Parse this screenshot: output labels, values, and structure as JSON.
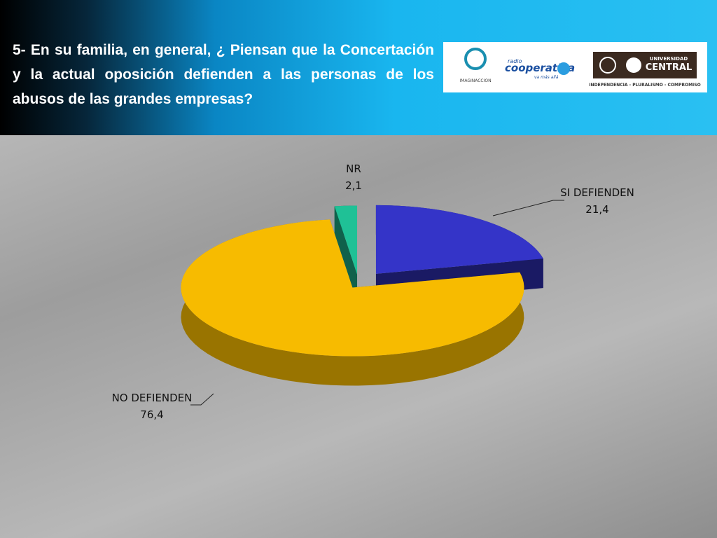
{
  "header": {
    "title": "5- En su familia, en general, ¿ Piensan que la Concertación y la actual oposición defienden a las personas de los abusos de las grandes empresas?"
  },
  "logos": {
    "imaginaccion": "IMAGINACCION",
    "cooperativa": "cooperativa",
    "cooperativa_radio": "radio",
    "cooperativa_tagline": "va más allá",
    "universidad_1": "UNIVERSIDAD",
    "universidad_2": "CENTRAL",
    "universidad_motto": "INDEPENDENCIA - PLURALISMO - COMPROMISO"
  },
  "chart_data": {
    "type": "pie",
    "categories": [
      "SI DEFIENDEN",
      "NO DEFIENDEN",
      "NR"
    ],
    "values": [
      21.4,
      76.4,
      2.1
    ],
    "value_labels": [
      "21,4",
      "76,4",
      "2,1"
    ],
    "colors": [
      "#3434c8",
      "#f7bb00",
      "#1fc196"
    ]
  }
}
